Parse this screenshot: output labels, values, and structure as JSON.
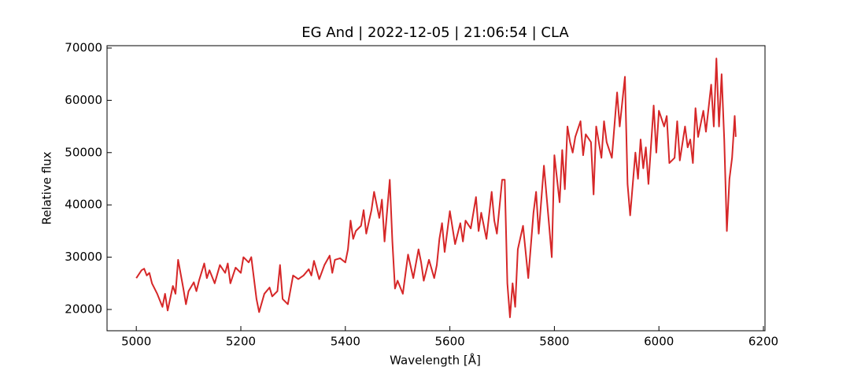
{
  "chart_data": {
    "type": "line",
    "title": "EG And | 2022-12-05 | 21:06:54 | CLA",
    "x_label": "Wavelength [Å]",
    "y_label": "Relative flux",
    "xlim": [
      4944,
      6203
    ],
    "ylim": [
      15930,
      70450
    ],
    "xticks": [
      5000,
      5200,
      5400,
      5600,
      5800,
      6000,
      6200
    ],
    "yticks": [
      20000,
      30000,
      40000,
      50000,
      60000,
      70000
    ],
    "grid": false,
    "x": [
      5000,
      5010,
      5015,
      5020,
      5025,
      5030,
      5040,
      5050,
      5055,
      5060,
      5070,
      5075,
      5080,
      5090,
      5095,
      5100,
      5110,
      5115,
      5120,
      5130,
      5135,
      5140,
      5150,
      5160,
      5170,
      5175,
      5180,
      5190,
      5200,
      5205,
      5215,
      5220,
      5225,
      5230,
      5235,
      5245,
      5255,
      5260,
      5270,
      5275,
      5280,
      5290,
      5300,
      5310,
      5320,
      5330,
      5335,
      5340,
      5350,
      5360,
      5370,
      5375,
      5380,
      5390,
      5400,
      5405,
      5410,
      5415,
      5420,
      5430,
      5435,
      5440,
      5450,
      5455,
      5465,
      5470,
      5475,
      5485,
      5490,
      5495,
      5500,
      5510,
      5520,
      5530,
      5540,
      5545,
      5550,
      5560,
      5570,
      5575,
      5580,
      5585,
      5590,
      5600,
      5610,
      5620,
      5625,
      5630,
      5640,
      5650,
      5655,
      5660,
      5670,
      5680,
      5685,
      5690,
      5700,
      5705,
      5710,
      5715,
      5720,
      5725,
      5730,
      5740,
      5750,
      5760,
      5765,
      5770,
      5780,
      5790,
      5795,
      5800,
      5810,
      5815,
      5820,
      5825,
      5830,
      5835,
      5840,
      5850,
      5855,
      5860,
      5870,
      5875,
      5880,
      5890,
      5895,
      5900,
      5910,
      5920,
      5925,
      5935,
      5940,
      5945,
      5955,
      5960,
      5965,
      5970,
      5975,
      5980,
      5990,
      5995,
      6000,
      6010,
      6015,
      6020,
      6030,
      6035,
      6040,
      6050,
      6055,
      6060,
      6065,
      6070,
      6075,
      6085,
      6090,
      6100,
      6105,
      6110,
      6115,
      6120,
      6125,
      6130,
      6135,
      6140,
      6145,
      6147
    ],
    "series": [
      {
        "color": "#d62728",
        "values": [
          26000,
          27500,
          27800,
          26500,
          27000,
          25000,
          23000,
          20500,
          23000,
          19800,
          24500,
          23000,
          29500,
          24000,
          21000,
          23500,
          25200,
          23500,
          25500,
          28800,
          26000,
          27500,
          25000,
          28500,
          27000,
          28800,
          25000,
          28000,
          27000,
          30000,
          29000,
          30000,
          26000,
          22000,
          19500,
          23000,
          24200,
          22500,
          23500,
          28500,
          22000,
          21000,
          26500,
          25800,
          26500,
          27700,
          26500,
          29300,
          25800,
          28500,
          30300,
          27000,
          29500,
          29800,
          29000,
          31500,
          37000,
          33500,
          35000,
          36000,
          39000,
          34500,
          39000,
          42500,
          37500,
          41000,
          33000,
          44800,
          33000,
          24000,
          25500,
          23000,
          30500,
          26000,
          31500,
          29000,
          25500,
          29500,
          26000,
          28500,
          33500,
          36500,
          31000,
          38800,
          32500,
          36500,
          33000,
          37000,
          35500,
          41500,
          35000,
          38500,
          33500,
          42500,
          37000,
          34500,
          44800,
          44800,
          25000,
          18500,
          25000,
          20500,
          31500,
          36000,
          26000,
          38500,
          42500,
          34500,
          47500,
          36000,
          30000,
          49500,
          40500,
          50500,
          43000,
          55000,
          52000,
          50000,
          53000,
          56000,
          49500,
          53500,
          52000,
          42000,
          55000,
          49000,
          56000,
          52000,
          49000,
          61500,
          55000,
          64500,
          44000,
          38000,
          50000,
          45000,
          52500,
          47000,
          51000,
          44000,
          59000,
          50000,
          58000,
          55000,
          57000,
          48000,
          49000,
          56000,
          48500,
          55000,
          51000,
          52500,
          48000,
          58500,
          53000,
          58000,
          54000,
          63000,
          55000,
          68000,
          55000,
          65000,
          52500,
          35000,
          45000,
          49000,
          57000,
          53000
        ]
      }
    ]
  }
}
